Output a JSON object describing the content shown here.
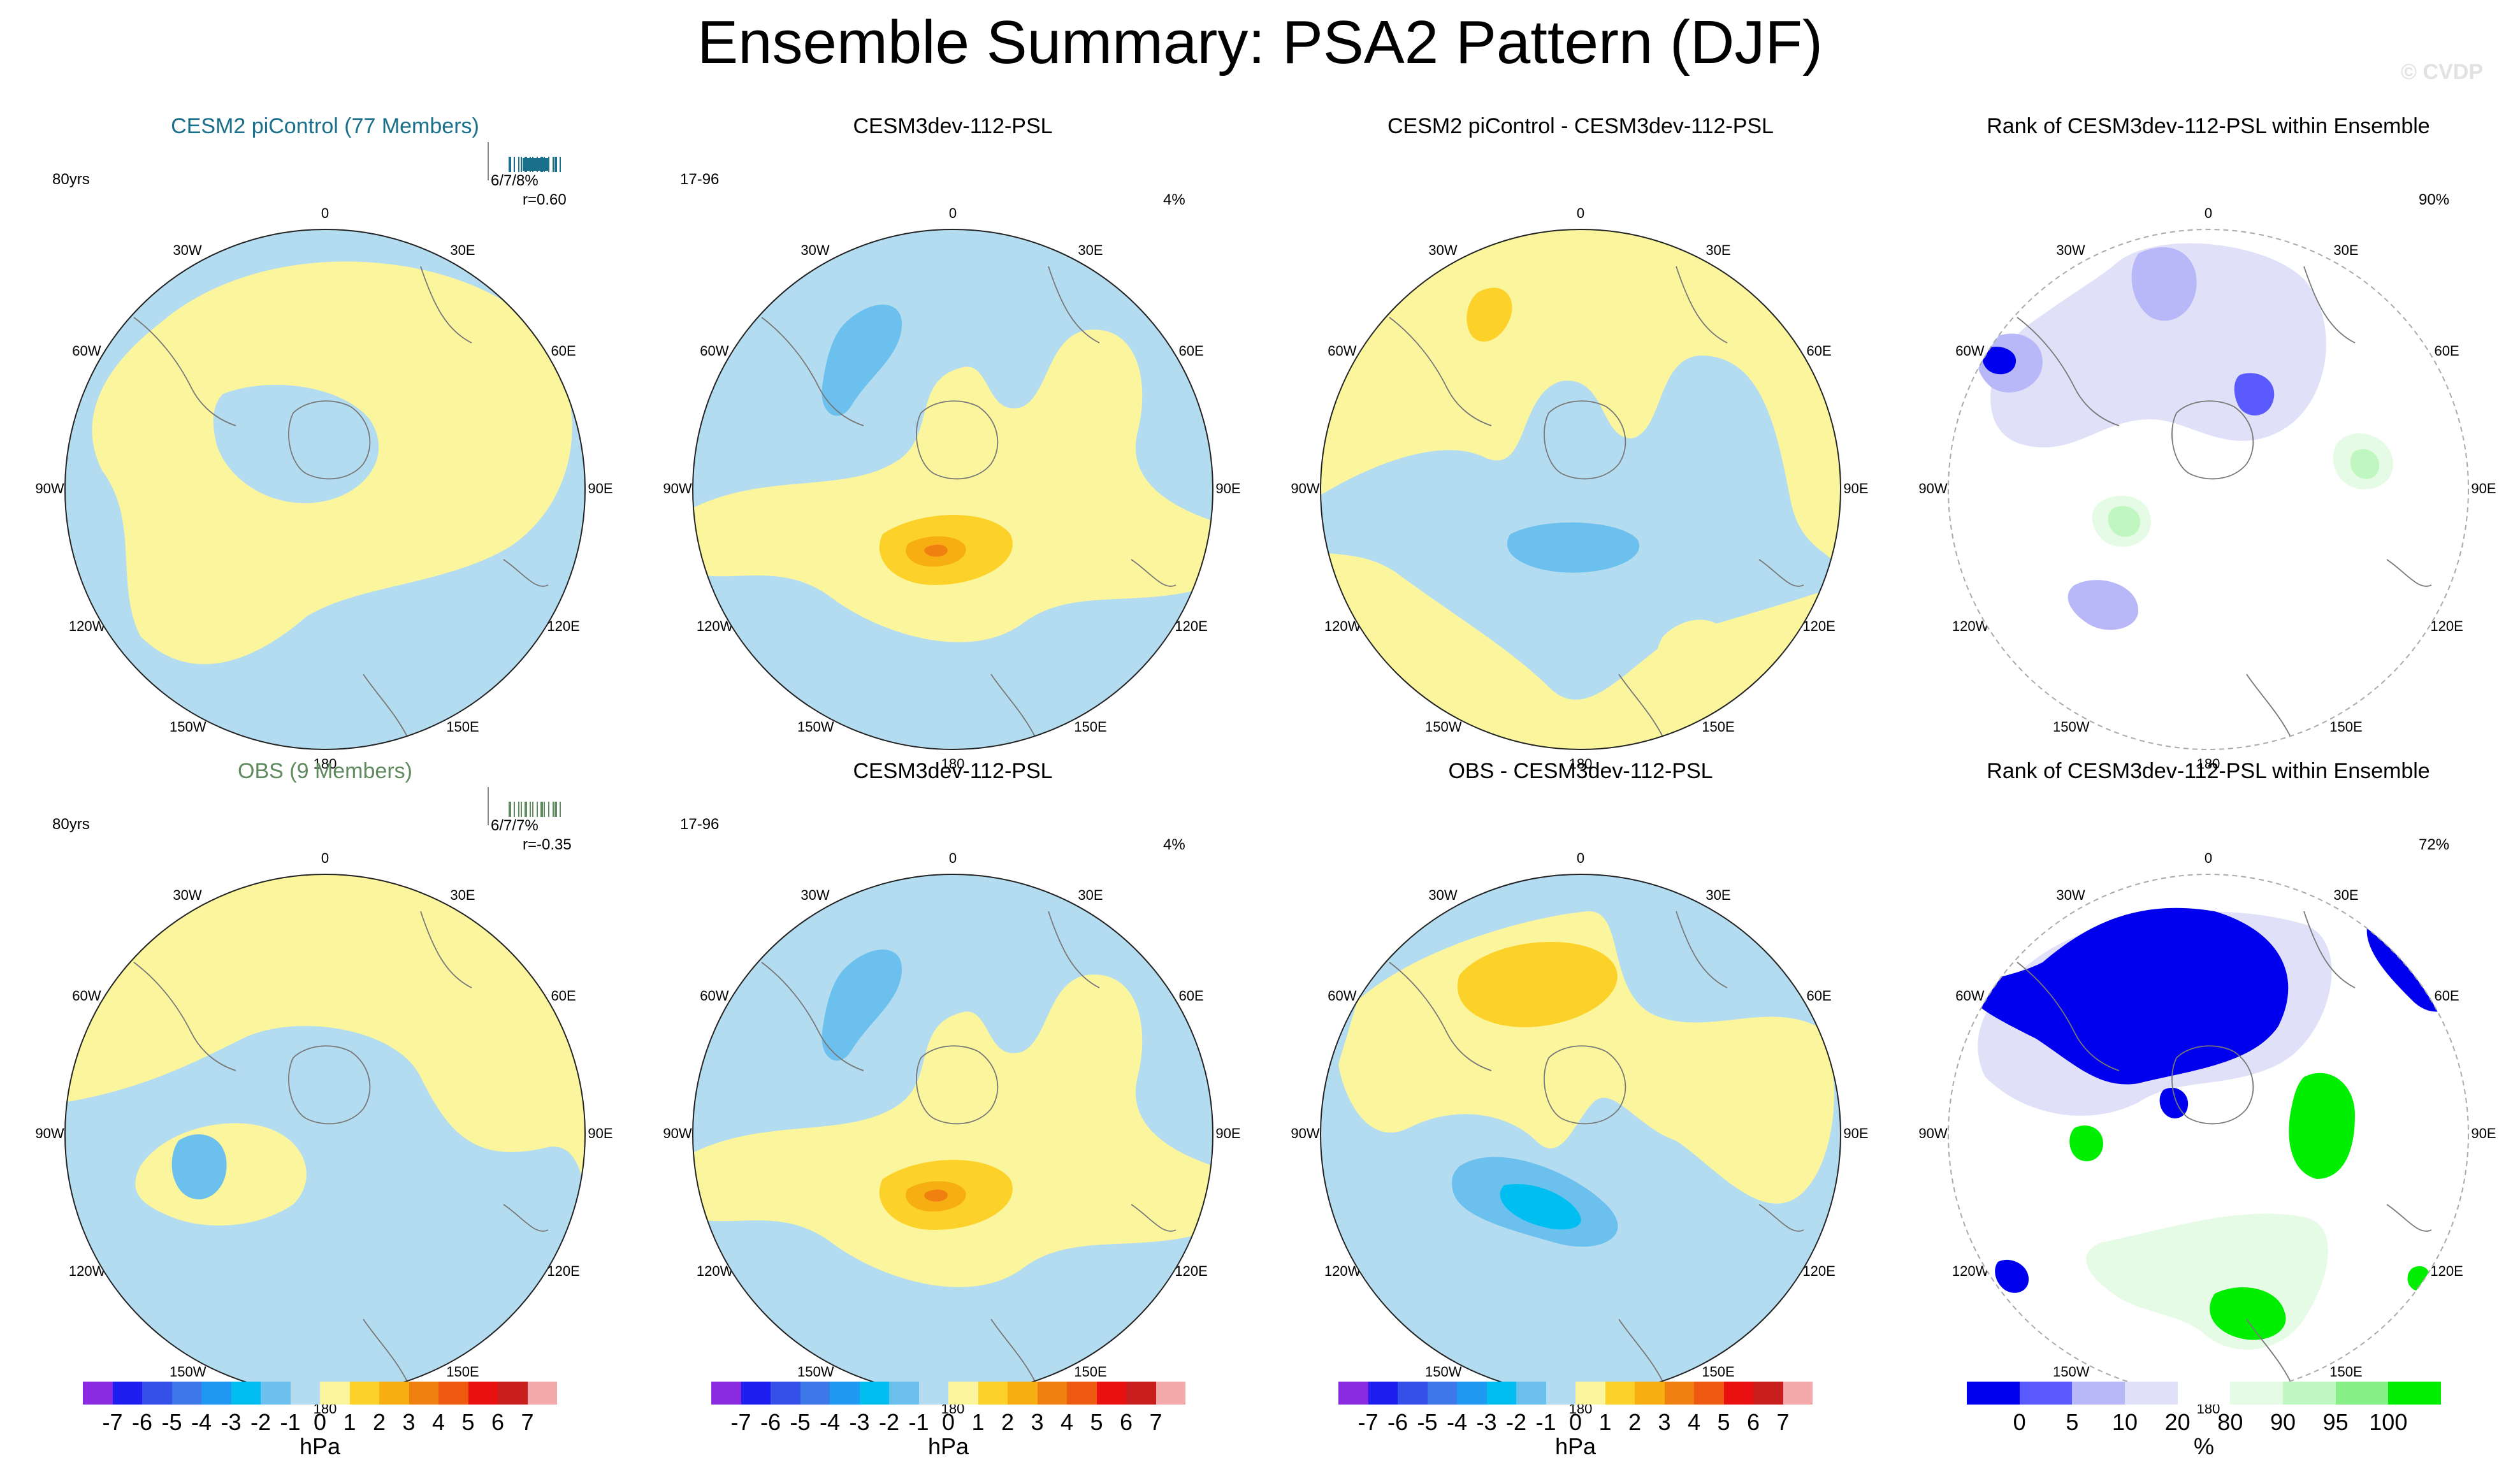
{
  "title": "Ensemble Summary: PSA2 Pattern (DJF)",
  "copyright": "© CVDP",
  "colors": {
    "neg1": "#b4dcf0",
    "neg2": "#6cc0ee",
    "neg3": "#2aa8e8",
    "neg4": "#00bff0",
    "pos1": "#fbf69e",
    "pos2": "#fcd22a",
    "pos3": "#f6ae12",
    "pos4": "#f08010",
    "rank_low_strong": "#0000ee",
    "rank_low_mid": "#5a5aff",
    "rank_low_light": "#b8b8f8",
    "rank_low_faint": "#e0e0f8",
    "rank_high_faint": "#e6fbe6",
    "rank_high_light": "#c0f6c0",
    "rank_high_mid": "#86ef86",
    "rank_high_strong": "#00ee00",
    "cesm_title": "#1a6f8a",
    "obs_title": "#5f8a5f"
  },
  "lon_labels": {
    "top": "0",
    "bottom": "180",
    "w30": "30W",
    "e30": "30E",
    "w60": "60W",
    "e60": "60E",
    "w90": "90W",
    "e90": "90E",
    "w120": "120W",
    "e120": "120E",
    "w150": "150W",
    "e150": "150E"
  },
  "panels": {
    "p11": {
      "title": "CESM2 piControl (77 Members)",
      "left_info": "80yrs",
      "right_info": "6/7/8%",
      "right_info2": "r=0.60"
    },
    "p12": {
      "title": "CESM3dev-112-PSL",
      "left_info": "17-96",
      "right_info": "4%"
    },
    "p13": {
      "title": "CESM2 piControl - CESM3dev-112-PSL"
    },
    "p14": {
      "title": "Rank of CESM3dev-112-PSL within Ensemble",
      "right_info": "90%"
    },
    "p21": {
      "title": "OBS (9 Members)",
      "left_info": "80yrs",
      "right_info": "6/7/7%",
      "right_info2": "r=-0.35"
    },
    "p22": {
      "title": "CESM3dev-112-PSL",
      "left_info": "17-96",
      "right_info": "4%"
    },
    "p23": {
      "title": "OBS - CESM3dev-112-PSL"
    },
    "p24": {
      "title": "Rank of CESM3dev-112-PSL within Ensemble",
      "right_info": "72%"
    }
  },
  "colorbar_hpa": {
    "labels": [
      "-7",
      "-6",
      "-5",
      "-4",
      "-3",
      "-2",
      "-1",
      "0",
      "1",
      "2",
      "3",
      "4",
      "5",
      "6",
      "7"
    ],
    "unit": "hPa",
    "colors": [
      "#8a2be2",
      "#1e1ef0",
      "#3550e8",
      "#3c78e8",
      "#1e98f0",
      "#00bff0",
      "#6cc0ee",
      "#b4dcf0",
      "#fbf69e",
      "#fcd22a",
      "#f6ae12",
      "#f08010",
      "#ee5a10",
      "#e81010",
      "#c81e1e",
      "#f4aaaa"
    ]
  },
  "colorbar_rank": {
    "labels": [
      "0",
      "5",
      "10",
      "20",
      "80",
      "90",
      "95",
      "100"
    ],
    "unit": "%",
    "colors": [
      "#0000ee",
      "#5a5aff",
      "#b8b8f8",
      "#e0e0f8",
      "#ffffff",
      "#e6fbe6",
      "#c0f6c0",
      "#86ef86",
      "#00ee00"
    ]
  },
  "chart_data": [
    {
      "type": "heatmap",
      "title": "CESM2 piControl (77 Members)",
      "projection": "south-polar stereographic",
      "units": "hPa",
      "levels": [
        -7,
        -6,
        -5,
        -4,
        -3,
        -2,
        -1,
        0,
        1,
        2,
        3,
        4,
        5,
        6,
        7
      ],
      "period": "80yrs",
      "pct_variance": "6/7/8%",
      "pattern_correlation": 0.6
    },
    {
      "type": "heatmap",
      "title": "CESM3dev-112-PSL",
      "units": "hPa",
      "period": "17-96",
      "pct_variance": "4%"
    },
    {
      "type": "heatmap",
      "title": "CESM2 piControl - CESM3dev-112-PSL",
      "units": "hPa"
    },
    {
      "type": "heatmap",
      "title": "Rank of CESM3dev-112-PSL within Ensemble",
      "units": "%",
      "levels": [
        0,
        5,
        10,
        20,
        80,
        90,
        95,
        100
      ],
      "pct_area": "90%"
    },
    {
      "type": "heatmap",
      "title": "OBS (9 Members)",
      "units": "hPa",
      "period": "80yrs",
      "pct_variance": "6/7/7%",
      "pattern_correlation": -0.35
    },
    {
      "type": "heatmap",
      "title": "CESM3dev-112-PSL",
      "units": "hPa",
      "period": "17-96",
      "pct_variance": "4%"
    },
    {
      "type": "heatmap",
      "title": "OBS - CESM3dev-112-PSL",
      "units": "hPa"
    },
    {
      "type": "heatmap",
      "title": "Rank of CESM3dev-112-PSL within Ensemble",
      "units": "%",
      "pct_area": "72%"
    }
  ]
}
